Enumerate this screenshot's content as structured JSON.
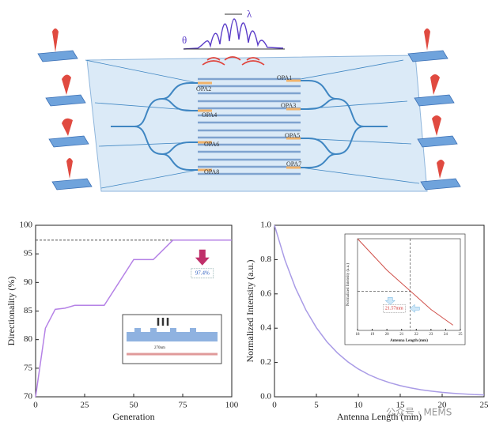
{
  "diagram": {
    "theta": "θ",
    "lambda": "λ",
    "opa_labels": [
      "OPA1",
      "OPA2",
      "OPA3",
      "OPA4",
      "OPA5",
      "OPA6",
      "OPA7",
      "OPA8"
    ]
  },
  "chart_data": [
    {
      "type": "line",
      "xlabel": "Generation",
      "ylabel": "Directionality (%)",
      "x": [
        0,
        5,
        10,
        15,
        20,
        35,
        50,
        60,
        70,
        100
      ],
      "series": [
        {
          "name": "Directionality",
          "color": "#b582e6",
          "values": [
            70,
            82,
            85.3,
            85.5,
            86,
            86,
            94,
            94,
            97.4,
            97.4
          ]
        }
      ],
      "xlim": [
        0,
        100
      ],
      "xticks": [
        0,
        25,
        50,
        75,
        100
      ],
      "ylim": [
        70,
        100
      ],
      "yticks": [
        70,
        75,
        80,
        85,
        90,
        95,
        100
      ],
      "reference_y": 97.4,
      "annotation": "97.4%",
      "inset": {
        "label": "270nm"
      }
    },
    {
      "type": "line",
      "xlabel": "Antenna Length (mm)",
      "ylabel": "Normalized Intensity (a.u.)",
      "x": [
        0,
        1.25,
        2.5,
        3.75,
        5,
        6.25,
        7.5,
        8.75,
        10,
        11.25,
        12.5,
        13.75,
        15,
        16.25,
        17.5,
        18.75,
        20,
        21.25,
        22.5,
        23.75,
        25
      ],
      "series": [
        {
          "name": "Normalized Intensity",
          "color": "#a99be6",
          "values": [
            1,
            0.797,
            0.635,
            0.506,
            0.403,
            0.321,
            0.256,
            0.204,
            0.162,
            0.129,
            0.103,
            0.082,
            0.065,
            0.052,
            0.041,
            0.033,
            0.026,
            0.021,
            0.017,
            0.013,
            0.011
          ]
        }
      ],
      "xlim": [
        0,
        25
      ],
      "xticks": [
        0,
        5,
        10,
        15,
        20,
        25
      ],
      "ylim": [
        0,
        1
      ],
      "yticks": [
        {
          "value": 0,
          "label": "0.0"
        },
        0.2,
        0.4,
        0.6,
        0.8,
        {
          "value": 1,
          "label": "1.0"
        }
      ]
    },
    {
      "type": "line",
      "xlabel": "Antenna Length (mm)",
      "ylabel": "Normalized Intensity (a.u.)",
      "x": [
        18,
        19,
        20,
        21,
        22,
        23,
        24,
        24.5
      ],
      "series": [
        {
          "name": "Inset",
          "color": "#d0504a",
          "values": [
            0.8,
            0.74,
            0.68,
            0.63,
            0.58,
            0.53,
            0.49,
            0.47
          ]
        }
      ],
      "xlim": [
        18,
        25
      ],
      "xticks": [
        18,
        19,
        20,
        21,
        22,
        23,
        24,
        25
      ],
      "ylim": [
        0.45,
        0.8
      ],
      "reference_x": 21.57,
      "reference_y": 0.6,
      "annotation": "21.57mm"
    }
  ],
  "watermark": "公众号 · MEMS"
}
